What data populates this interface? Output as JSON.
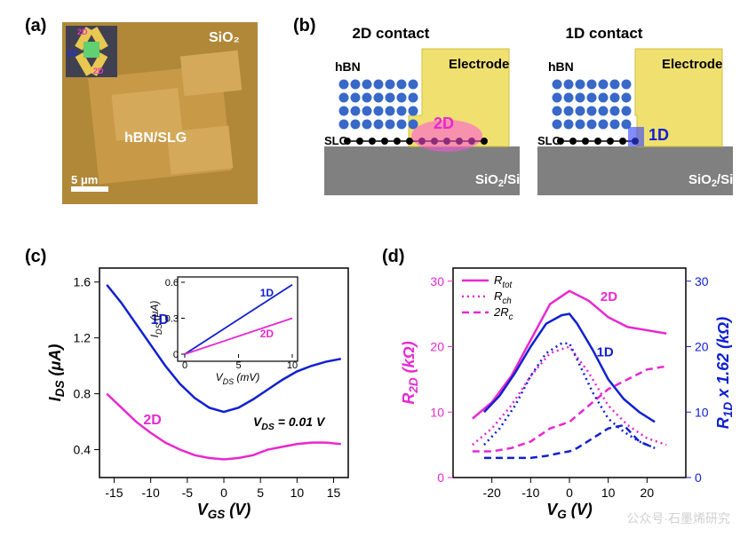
{
  "panel_a": {
    "label": "(a)",
    "afm_labels": {
      "sio2": "SiO₂",
      "hbn_slg": "hBN/SLG",
      "scale": "5 μm",
      "inset_2d": "2D",
      "inset_1d": "1D"
    },
    "colors": {
      "afm_bg": "#b08838",
      "afm_light": "#d4aa5a",
      "afm_dark": "#8a6628",
      "inset_bg": "#404050",
      "electrode": "#e8c850",
      "center": "#60d070",
      "magenta": "#e838c0",
      "blue": "#2030e0"
    }
  },
  "panel_b": {
    "label": "(b)",
    "title_2d": "2D contact",
    "title_1d": "1D contact",
    "labels": {
      "hbn": "hBN",
      "slg": "SLG",
      "electrode": "Electrode",
      "substrate": "SiO₂/Si",
      "contact_2d": "2D",
      "contact_1d": "1D"
    },
    "colors": {
      "electrode": "#f0e070",
      "electrode_edge": "#d0c040",
      "substrate": "#808080",
      "hbn_atom": "#3868c8",
      "slg_atom": "#000000",
      "glow_2d": "#ff50e0",
      "glow_1d": "#3040ff",
      "text_white": "#ffffff",
      "text_black": "#000000"
    }
  },
  "panel_c": {
    "label": "(c)",
    "type": "line",
    "xlabel": "V_{GS} (V)",
    "ylabel": "I_{DS} (μA)",
    "xlim": [
      -17,
      17
    ],
    "ylim": [
      0.2,
      1.7
    ],
    "xticks": [
      -15,
      -10,
      -5,
      0,
      5,
      10,
      15
    ],
    "yticks": [
      0.4,
      0.8,
      1.2,
      1.6
    ],
    "annotation_vds": "V_{DS} = 0.01 V",
    "series": [
      {
        "label": "1D",
        "color": "#1020d0",
        "line_width": 2.5,
        "x": [
          -16,
          -14,
          -12,
          -10,
          -8,
          -6,
          -4,
          -2,
          0,
          2,
          4,
          6,
          8,
          10,
          12,
          14,
          16
        ],
        "y": [
          1.58,
          1.45,
          1.3,
          1.15,
          1.0,
          0.87,
          0.77,
          0.7,
          0.67,
          0.7,
          0.76,
          0.83,
          0.9,
          0.96,
          1.0,
          1.03,
          1.05
        ]
      },
      {
        "label": "2D",
        "color": "#e828d0",
        "line_width": 2.5,
        "x": [
          -16,
          -14,
          -12,
          -10,
          -8,
          -6,
          -4,
          -2,
          0,
          2,
          4,
          6,
          8,
          10,
          12,
          14,
          16
        ],
        "y": [
          0.8,
          0.7,
          0.6,
          0.52,
          0.45,
          0.4,
          0.36,
          0.34,
          0.33,
          0.34,
          0.36,
          0.4,
          0.42,
          0.44,
          0.45,
          0.45,
          0.44
        ]
      }
    ],
    "inset": {
      "xlabel": "V_{DS} (mV)",
      "ylabel": "I_{DS} (μA)",
      "xlim": [
        0,
        10
      ],
      "ylim": [
        0,
        0.6
      ],
      "xticks": [
        0,
        5,
        10
      ],
      "yticks": [
        0,
        0.3,
        0.6
      ],
      "series": [
        {
          "label": "1D",
          "color": "#1020d0",
          "x": [
            0,
            10
          ],
          "y": [
            0,
            0.58
          ]
        },
        {
          "label": "2D",
          "color": "#e828d0",
          "x": [
            0,
            10
          ],
          "y": [
            0,
            0.3
          ]
        }
      ]
    },
    "label_fontsize": 18,
    "tick_fontsize": 14,
    "background_color": "#ffffff",
    "axis_color": "#000000"
  },
  "panel_d": {
    "label": "(d)",
    "type": "line",
    "xlabel": "V_{G} (V)",
    "ylabel_left": "R_{2D} (kΩ)",
    "ylabel_right": "R_{1D} x 1.62 (kΩ)",
    "xlim": [
      -30,
      30
    ],
    "ylim_left": [
      0,
      32
    ],
    "ylim_right": [
      0,
      32
    ],
    "xticks": [
      -20,
      -10,
      0,
      10,
      20
    ],
    "yticks_left": [
      0,
      10,
      20,
      30
    ],
    "yticks_right": [
      0,
      10,
      20,
      30
    ],
    "legend": [
      {
        "label": "R_{tot}",
        "dash": "solid"
      },
      {
        "label": "R_{ch}",
        "dash": "dot"
      },
      {
        "label": "2R_{c}",
        "dash": "dash"
      }
    ],
    "series": [
      {
        "name": "2D_Rtot",
        "color": "#e828d0",
        "dash": "solid",
        "line_width": 2.5,
        "x": [
          -25,
          -20,
          -15,
          -10,
          -5,
          0,
          5,
          10,
          15,
          20,
          25
        ],
        "y": [
          9.0,
          11.5,
          15.5,
          21.0,
          26.5,
          28.5,
          27.0,
          24.5,
          23.0,
          22.5,
          22.0
        ]
      },
      {
        "name": "2D_Rch",
        "color": "#e828d0",
        "dash": "dot",
        "line_width": 2.5,
        "x": [
          -25,
          -20,
          -15,
          -10,
          -5,
          0,
          5,
          10,
          15,
          20,
          25
        ],
        "y": [
          5.0,
          7.5,
          11.0,
          15.5,
          19.0,
          20.0,
          16.0,
          11.0,
          8.0,
          6.0,
          5.0
        ]
      },
      {
        "name": "2D_2Rc",
        "color": "#e828d0",
        "dash": "dash",
        "line_width": 2.5,
        "x": [
          -25,
          -20,
          -15,
          -10,
          -5,
          0,
          5,
          10,
          15,
          20,
          25
        ],
        "y": [
          4.0,
          4.0,
          4.5,
          5.5,
          7.5,
          8.5,
          11.0,
          13.5,
          15.0,
          16.5,
          17.0
        ]
      },
      {
        "name": "1D_Rtot",
        "color": "#1020d0",
        "dash": "solid",
        "line_width": 2.5,
        "x": [
          -22,
          -18,
          -14,
          -10,
          -6,
          -2,
          0,
          2,
          6,
          10,
          14,
          18,
          22
        ],
        "y": [
          10.0,
          12.5,
          16.0,
          20.0,
          23.5,
          24.8,
          25.0,
          23.5,
          19.5,
          15.0,
          12.0,
          10.0,
          8.5
        ]
      },
      {
        "name": "1D_Rch",
        "color": "#1020d0",
        "dash": "dot",
        "line_width": 2.5,
        "x": [
          -22,
          -18,
          -14,
          -10,
          -6,
          -2,
          0,
          2,
          6,
          10,
          14,
          18,
          22
        ],
        "y": [
          5.0,
          7.5,
          11.0,
          15.5,
          19.0,
          20.5,
          20.5,
          18.0,
          13.0,
          9.0,
          7.0,
          5.5,
          4.5
        ]
      },
      {
        "name": "1D_2Rc",
        "color": "#1020d0",
        "dash": "dash",
        "line_width": 2.5,
        "x": [
          -22,
          -18,
          -14,
          -10,
          -6,
          -2,
          0,
          2,
          6,
          10,
          14,
          18,
          22
        ],
        "y": [
          3.0,
          3.0,
          3.0,
          3.0,
          3.3,
          3.8,
          4.0,
          4.5,
          6.0,
          7.5,
          8.0,
          5.5,
          4.5
        ]
      }
    ],
    "label_fontsize": 18,
    "tick_fontsize": 14,
    "left_color": "#e828d0",
    "right_color": "#1020d0",
    "axis_color": "#000000"
  },
  "watermark": "公众号·石墨烯研究"
}
